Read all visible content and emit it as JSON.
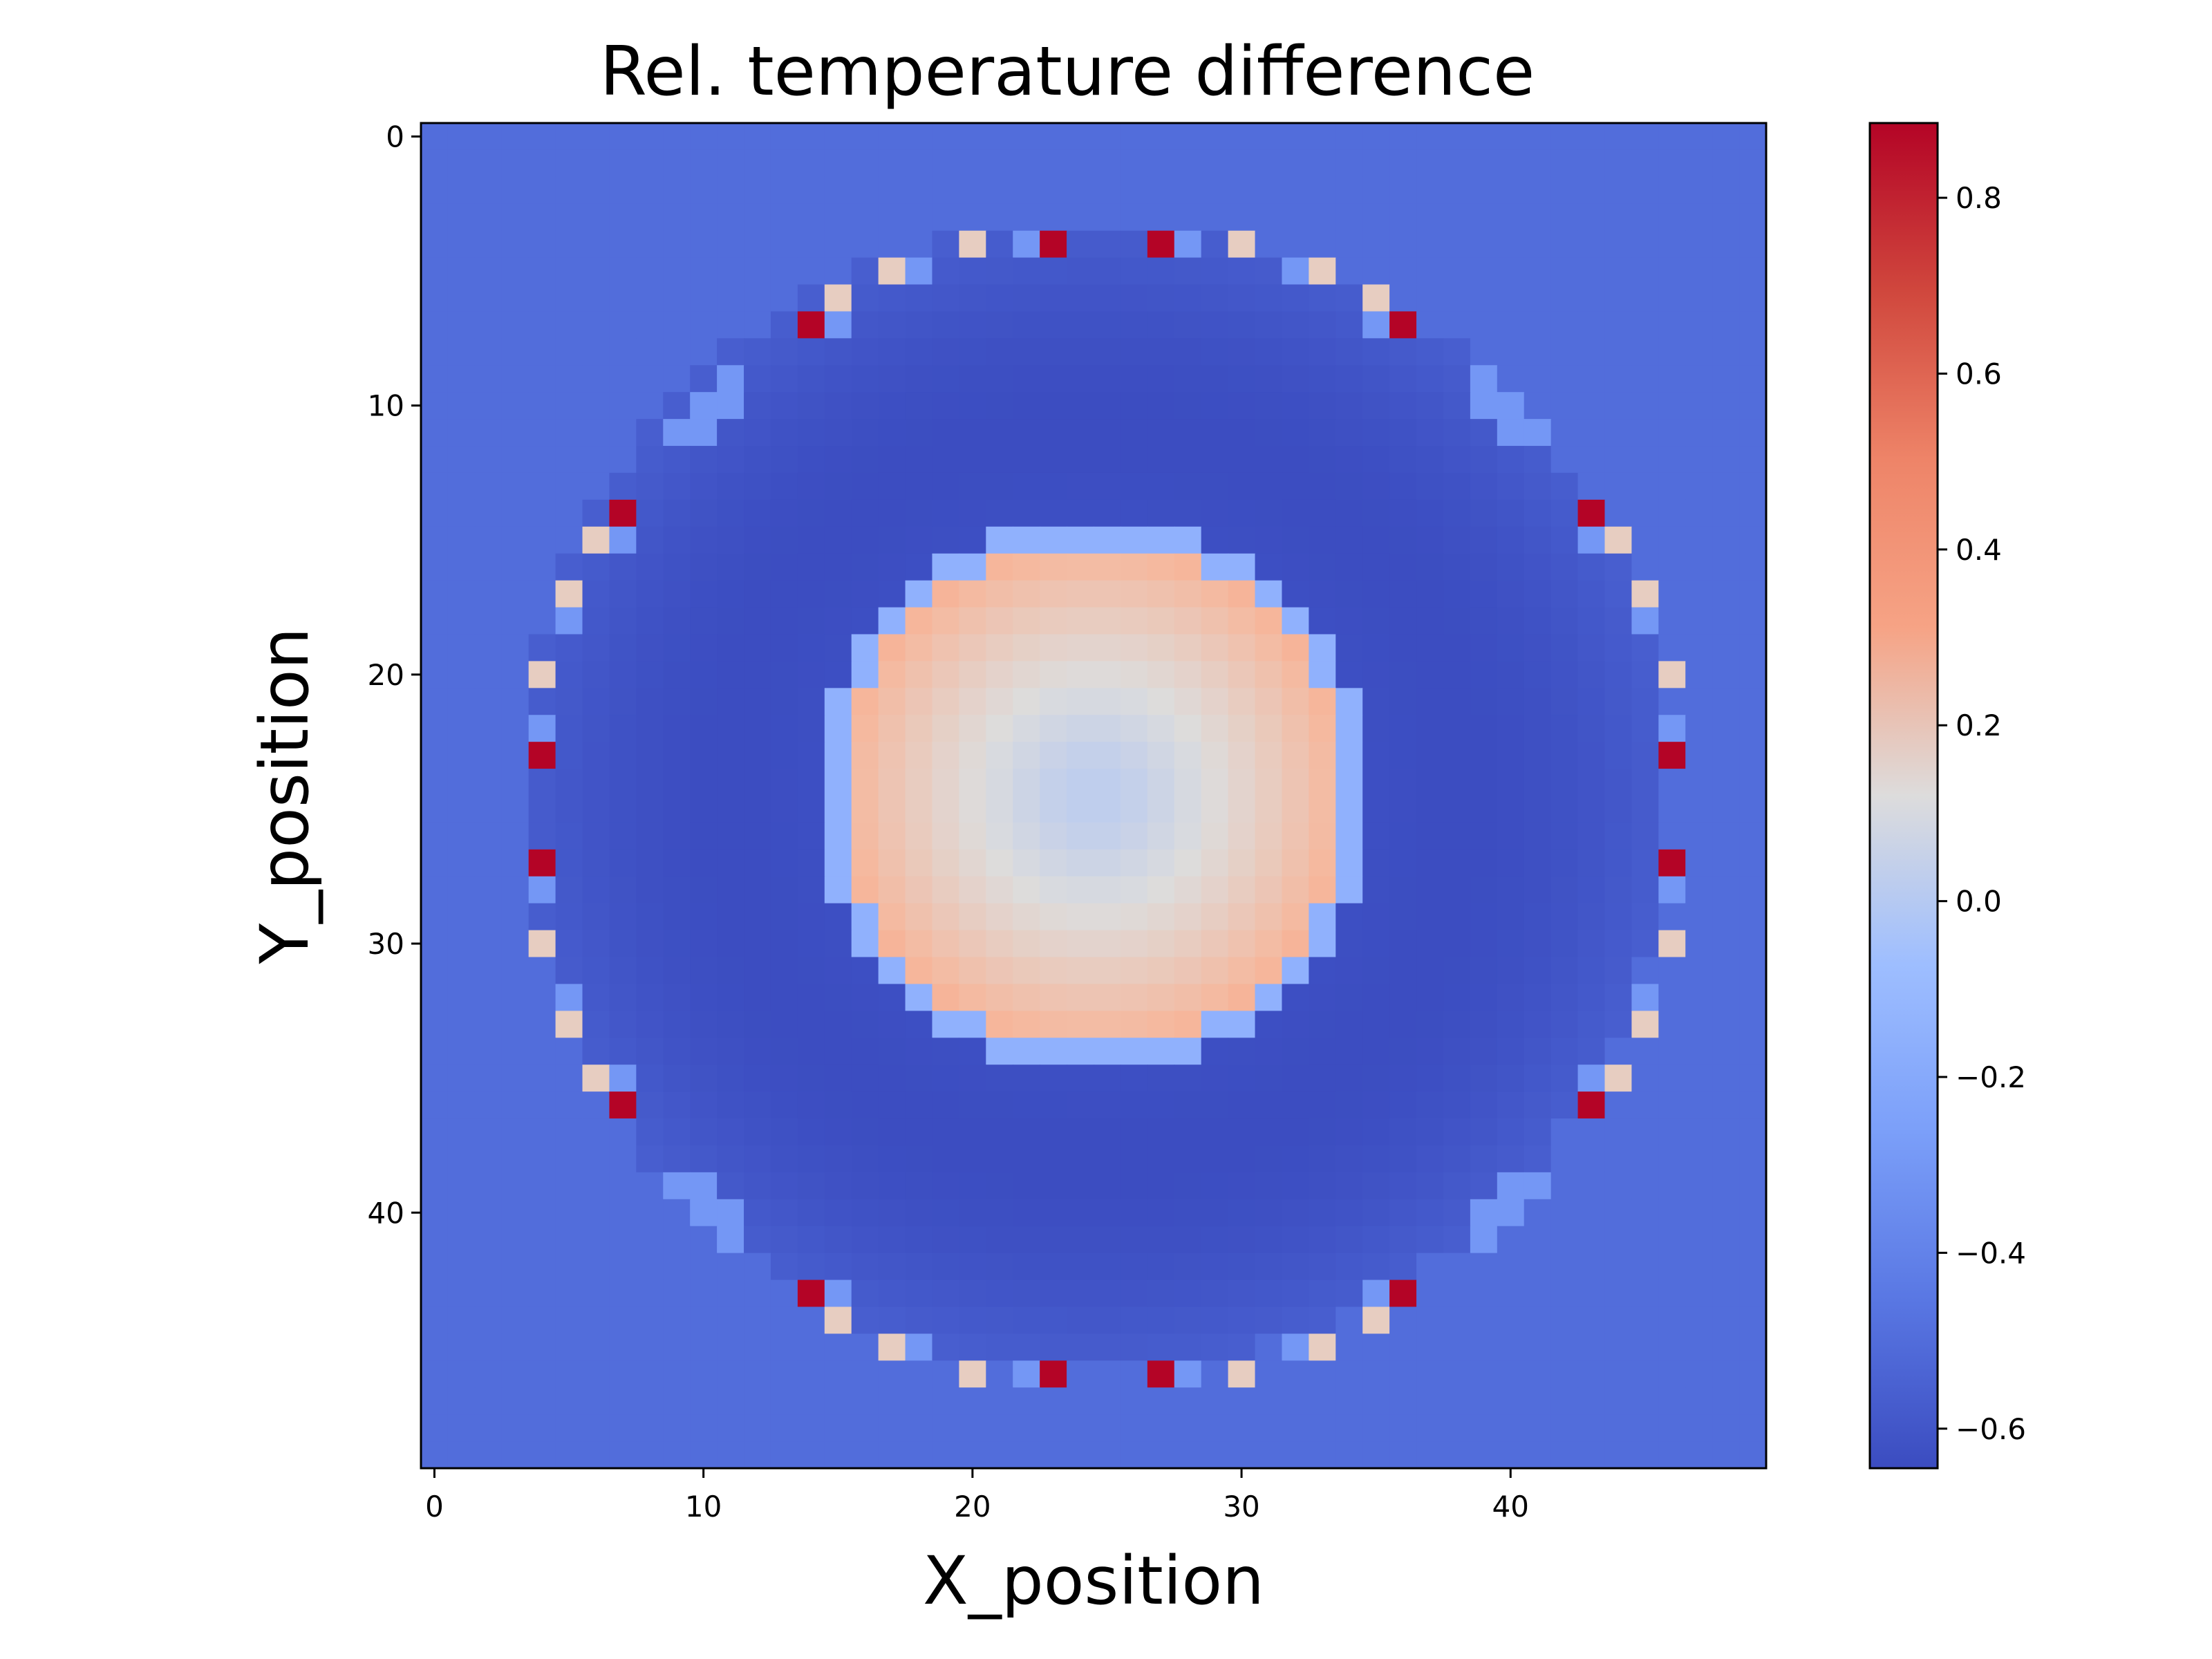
{
  "chart_data": {
    "type": "heatmap",
    "title": "Rel. temperature difference",
    "xlabel": "X_position",
    "ylabel": "Y_position",
    "grid_size": [
      50,
      50
    ],
    "xlim": [
      -0.5,
      49.5
    ],
    "ylim": [
      49.5,
      -0.5
    ],
    "x_ticks": [
      0,
      10,
      20,
      30,
      40
    ],
    "y_ticks": [
      0,
      10,
      20,
      30,
      40
    ],
    "colormap": "coolwarm",
    "color_range": [
      -0.645,
      0.885
    ],
    "colorbar_ticks": [
      -0.6,
      -0.4,
      -0.2,
      0.0,
      0.2,
      0.4,
      0.6,
      0.8
    ],
    "colorbar_tick_labels": [
      "−0.6",
      "−0.4",
      "−0.2",
      "0.0",
      "0.2",
      "0.4",
      "0.6",
      "0.8"
    ],
    "colorbar_position": "right",
    "grid": false,
    "description_values": {
      "background": -0.5,
      "inner_disc_center": 0.02,
      "inner_disc_edge": 0.33,
      "inner_disc_radius": 9.5,
      "dark_ring_min": -0.63,
      "dark_ring_outer_radius": 21.5
    },
    "point_cells": [
      {
        "x": 4,
        "y": 20,
        "value": 0.2
      },
      {
        "x": 4,
        "y": 22,
        "value": -0.3
      },
      {
        "x": 4,
        "y": 23,
        "value": 0.885
      },
      {
        "x": 4,
        "y": 27,
        "value": 0.885
      },
      {
        "x": 4,
        "y": 28,
        "value": -0.3
      },
      {
        "x": 4,
        "y": 30,
        "value": 0.2
      },
      {
        "x": 5,
        "y": 17,
        "value": 0.2
      },
      {
        "x": 5,
        "y": 18,
        "value": -0.3
      },
      {
        "x": 5,
        "y": 32,
        "value": -0.3
      },
      {
        "x": 5,
        "y": 33,
        "value": 0.2
      },
      {
        "x": 6,
        "y": 15,
        "value": 0.2
      },
      {
        "x": 6,
        "y": 35,
        "value": 0.2
      },
      {
        "x": 7,
        "y": 14,
        "value": 0.885
      },
      {
        "x": 7,
        "y": 15,
        "value": -0.3
      },
      {
        "x": 7,
        "y": 35,
        "value": -0.3
      },
      {
        "x": 7,
        "y": 36,
        "value": 0.885
      },
      {
        "x": 9,
        "y": 11,
        "value": -0.3
      },
      {
        "x": 9,
        "y": 39,
        "value": -0.3
      },
      {
        "x": 10,
        "y": 11,
        "value": -0.3
      },
      {
        "x": 10,
        "y": 10,
        "value": -0.3
      },
      {
        "x": 10,
        "y": 39,
        "value": -0.3
      },
      {
        "x": 10,
        "y": 40,
        "value": -0.3
      },
      {
        "x": 11,
        "y": 9,
        "value": -0.3
      },
      {
        "x": 11,
        "y": 10,
        "value": -0.3
      },
      {
        "x": 11,
        "y": 40,
        "value": -0.3
      },
      {
        "x": 11,
        "y": 41,
        "value": -0.3
      },
      {
        "x": 14,
        "y": 7,
        "value": 0.885
      },
      {
        "x": 15,
        "y": 6,
        "value": 0.2
      },
      {
        "x": 15,
        "y": 7,
        "value": -0.3
      },
      {
        "x": 14,
        "y": 43,
        "value": 0.885
      },
      {
        "x": 15,
        "y": 43,
        "value": -0.3
      },
      {
        "x": 15,
        "y": 44,
        "value": 0.2
      },
      {
        "x": 17,
        "y": 5,
        "value": 0.2
      },
      {
        "x": 18,
        "y": 5,
        "value": -0.3
      },
      {
        "x": 17,
        "y": 45,
        "value": 0.2
      },
      {
        "x": 18,
        "y": 45,
        "value": -0.3
      },
      {
        "x": 20,
        "y": 4,
        "value": 0.2
      },
      {
        "x": 22,
        "y": 4,
        "value": -0.3
      },
      {
        "x": 23,
        "y": 4,
        "value": 0.885
      },
      {
        "x": 27,
        "y": 4,
        "value": 0.885
      },
      {
        "x": 28,
        "y": 4,
        "value": -0.3
      },
      {
        "x": 30,
        "y": 4,
        "value": 0.2
      },
      {
        "x": 20,
        "y": 46,
        "value": 0.2
      },
      {
        "x": 22,
        "y": 46,
        "value": -0.3
      },
      {
        "x": 23,
        "y": 46,
        "value": 0.885
      },
      {
        "x": 27,
        "y": 46,
        "value": 0.885
      },
      {
        "x": 28,
        "y": 46,
        "value": -0.3
      },
      {
        "x": 30,
        "y": 46,
        "value": 0.2
      },
      {
        "x": 32,
        "y": 5,
        "value": -0.3
      },
      {
        "x": 33,
        "y": 5,
        "value": 0.2
      },
      {
        "x": 32,
        "y": 45,
        "value": -0.3
      },
      {
        "x": 33,
        "y": 45,
        "value": 0.2
      },
      {
        "x": 35,
        "y": 6,
        "value": 0.2
      },
      {
        "x": 35,
        "y": 7,
        "value": -0.3
      },
      {
        "x": 36,
        "y": 7,
        "value": 0.885
      },
      {
        "x": 35,
        "y": 43,
        "value": -0.3
      },
      {
        "x": 35,
        "y": 44,
        "value": 0.2
      },
      {
        "x": 36,
        "y": 43,
        "value": 0.885
      },
      {
        "x": 39,
        "y": 9,
        "value": -0.3
      },
      {
        "x": 39,
        "y": 10,
        "value": -0.3
      },
      {
        "x": 40,
        "y": 10,
        "value": -0.3
      },
      {
        "x": 40,
        "y": 11,
        "value": -0.3
      },
      {
        "x": 41,
        "y": 11,
        "value": -0.3
      },
      {
        "x": 39,
        "y": 40,
        "value": -0.3
      },
      {
        "x": 39,
        "y": 41,
        "value": -0.3
      },
      {
        "x": 40,
        "y": 39,
        "value": -0.3
      },
      {
        "x": 40,
        "y": 40,
        "value": -0.3
      },
      {
        "x": 41,
        "y": 39,
        "value": -0.3
      },
      {
        "x": 43,
        "y": 14,
        "value": 0.885
      },
      {
        "x": 43,
        "y": 15,
        "value": -0.3
      },
      {
        "x": 44,
        "y": 15,
        "value": 0.2
      },
      {
        "x": 43,
        "y": 35,
        "value": -0.3
      },
      {
        "x": 43,
        "y": 36,
        "value": 0.885
      },
      {
        "x": 44,
        "y": 35,
        "value": 0.2
      },
      {
        "x": 45,
        "y": 17,
        "value": 0.2
      },
      {
        "x": 45,
        "y": 18,
        "value": -0.3
      },
      {
        "x": 45,
        "y": 32,
        "value": -0.3
      },
      {
        "x": 45,
        "y": 33,
        "value": 0.2
      },
      {
        "x": 46,
        "y": 20,
        "value": 0.2
      },
      {
        "x": 46,
        "y": 22,
        "value": -0.3
      },
      {
        "x": 46,
        "y": 23,
        "value": 0.885
      },
      {
        "x": 46,
        "y": 27,
        "value": 0.885
      },
      {
        "x": 46,
        "y": 28,
        "value": -0.3
      },
      {
        "x": 46,
        "y": 30,
        "value": 0.2
      }
    ]
  }
}
